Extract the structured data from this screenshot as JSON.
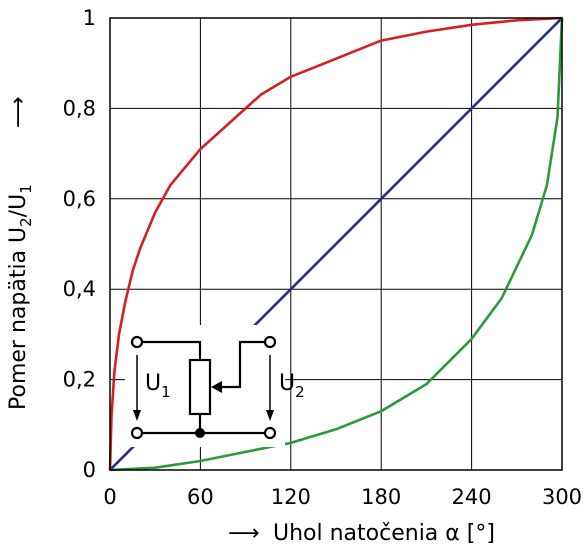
{
  "chart_data": {
    "type": "line",
    "xlabel": "Uhol natočenia α [°]",
    "xlabel_arrow": "⟶",
    "xlabel_parts": {
      "text": "Uhol natočenia α [",
      "deg": "°",
      "end": "]"
    },
    "ylabel_parts": {
      "prefix": "Pomer napätia U",
      "sub1": "2",
      "slash": "/U",
      "sub2": "1"
    },
    "ylabel_arrow": "⟶",
    "xlim": [
      0,
      300
    ],
    "ylim": [
      0,
      1
    ],
    "grid": true,
    "x_ticks": [
      "0",
      "60",
      "120",
      "180",
      "240",
      "300"
    ],
    "y_ticks": [
      "0",
      "0,2",
      "0,4",
      "0,6",
      "0,8",
      "1"
    ],
    "series": [
      {
        "color": "#d42020",
        "x": [
          0,
          1,
          3,
          6,
          10,
          15,
          20,
          30,
          40,
          60,
          80,
          100,
          120,
          150,
          180,
          210,
          240,
          270,
          300
        ],
        "values": [
          0,
          0.12,
          0.22,
          0.3,
          0.37,
          0.44,
          0.49,
          0.57,
          0.63,
          0.71,
          0.77,
          0.83,
          0.87,
          0.91,
          0.95,
          0.97,
          0.985,
          0.995,
          1
        ]
      },
      {
        "color": "#1f2e8f",
        "x": [
          0,
          300
        ],
        "values": [
          0,
          1
        ]
      },
      {
        "color": "#2a9a3a",
        "x": [
          0,
          30,
          60,
          90,
          120,
          150,
          180,
          210,
          240,
          260,
          280,
          290,
          297,
          300
        ],
        "values": [
          0,
          0.005,
          0.02,
          0.04,
          0.06,
          0.09,
          0.13,
          0.19,
          0.29,
          0.38,
          0.52,
          0.63,
          0.78,
          1
        ]
      }
    ],
    "inset": {
      "label_left": "U",
      "label_left_sub": "1",
      "label_right": "U",
      "label_right_sub": "2"
    }
  }
}
